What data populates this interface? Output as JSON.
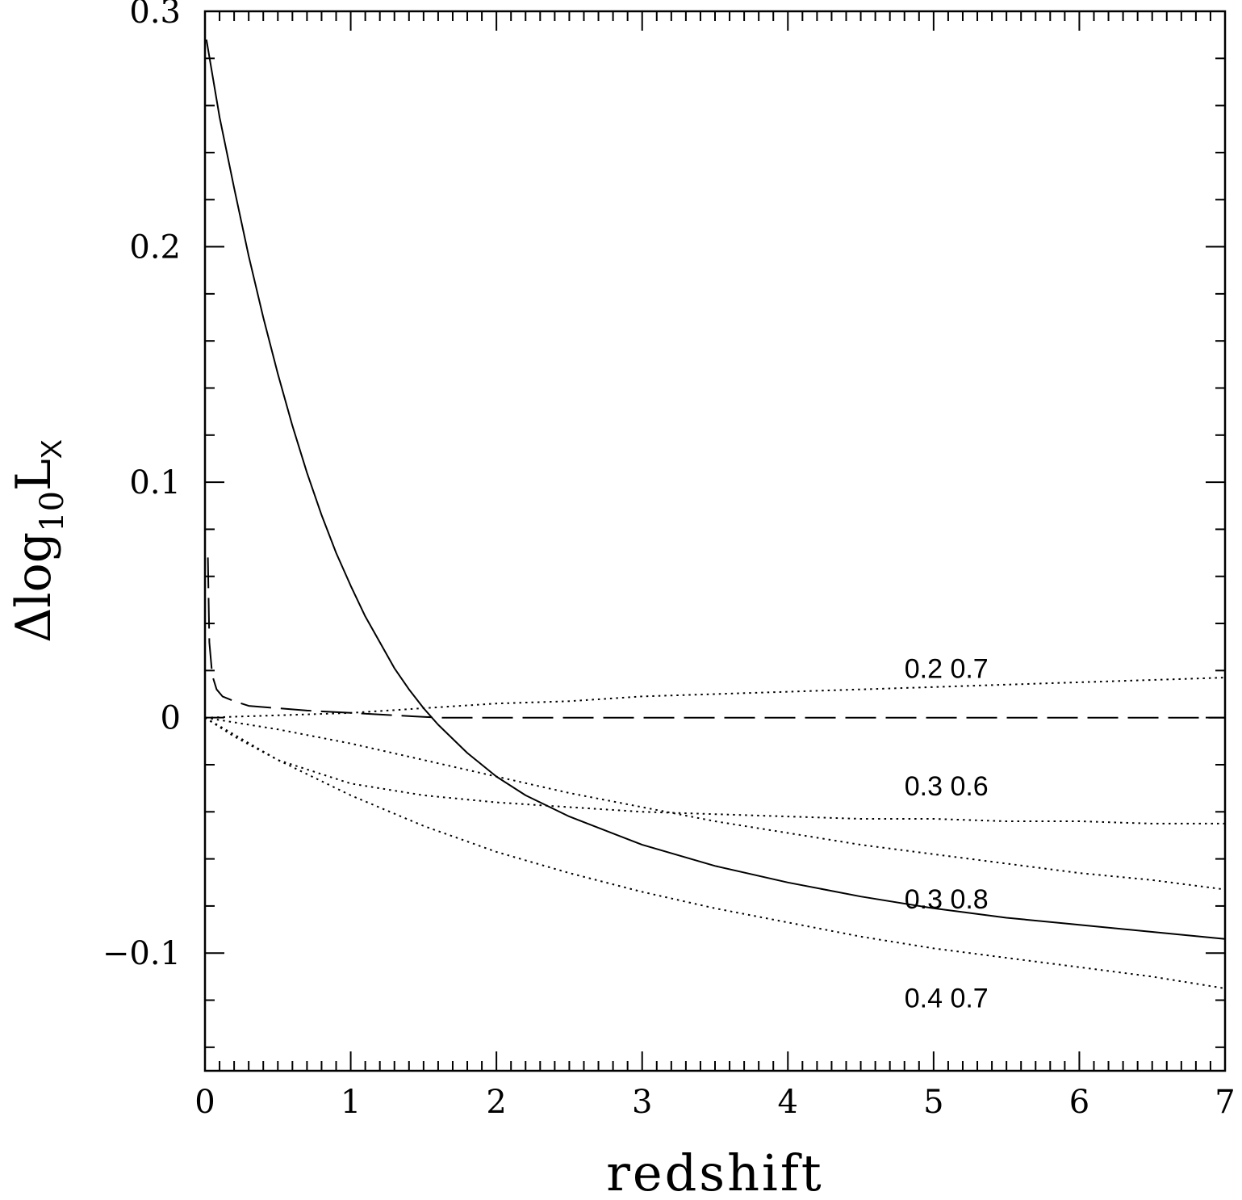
{
  "chart_data": {
    "type": "line",
    "xlabel": "redshift",
    "ylabel": "Δlog10LX",
    "ylabel_parts": {
      "delta": "Δ",
      "log": "log",
      "sub": "10",
      "L": "L",
      "Lsub": "X"
    },
    "xlim": [
      0,
      7
    ],
    "ylim": [
      -0.15,
      0.3
    ],
    "xticks": [
      0,
      1,
      2,
      3,
      4,
      5,
      6,
      7
    ],
    "xtick_labels": [
      "0",
      "1",
      "2",
      "3",
      "4",
      "5",
      "6",
      "7"
    ],
    "yticks": [
      -0.1,
      0,
      0.1,
      0.2,
      0.3
    ],
    "ytick_labels": [
      "−0.1",
      "0",
      "0.1",
      "0.2",
      "0.3"
    ],
    "grid": false,
    "series": [
      {
        "style": "solid",
        "x": [
          0.01,
          0.1,
          0.2,
          0.3,
          0.4,
          0.5,
          0.6,
          0.7,
          0.8,
          0.9,
          1.0,
          1.1,
          1.2,
          1.3,
          1.4,
          1.5,
          1.6,
          1.8,
          2.0,
          2.2,
          2.5,
          3.0,
          3.5,
          4.0,
          4.5,
          5.0,
          5.5,
          6.0,
          6.5,
          7.0
        ],
        "y": [
          0.288,
          0.255,
          0.225,
          0.196,
          0.17,
          0.146,
          0.124,
          0.104,
          0.086,
          0.07,
          0.056,
          0.043,
          0.032,
          0.021,
          0.012,
          0.004,
          -0.003,
          -0.015,
          -0.025,
          -0.033,
          -0.042,
          -0.054,
          -0.063,
          -0.07,
          -0.076,
          -0.081,
          -0.085,
          -0.088,
          -0.091,
          -0.094
        ]
      },
      {
        "style": "dashed",
        "x": [
          0.02,
          0.03,
          0.05,
          0.08,
          0.12,
          0.2,
          0.3,
          0.5,
          0.7,
          1.0,
          1.3,
          1.6,
          2.0,
          3.0,
          4.0,
          5.0,
          6.0,
          7.0
        ],
        "y": [
          0.068,
          0.032,
          0.018,
          0.012,
          0.009,
          0.007,
          0.005,
          0.004,
          0.003,
          0.002,
          0.001,
          0.0,
          0.0,
          0.0,
          0.0,
          0.0,
          0.0,
          0.0
        ]
      },
      {
        "style": "dotted",
        "label": "0.2 0.7",
        "x": [
          0,
          0.5,
          1.0,
          1.5,
          2.0,
          2.5,
          3.0,
          3.5,
          4.0,
          4.5,
          5.0,
          5.5,
          6.0,
          6.5,
          7.0
        ],
        "y": [
          0,
          0.001,
          0.002,
          0.004,
          0.006,
          0.007,
          0.009,
          0.01,
          0.011,
          0.012,
          0.013,
          0.014,
          0.015,
          0.016,
          0.017
        ]
      },
      {
        "style": "dotted",
        "label": "0.3 0.6",
        "x": [
          0,
          0.2,
          0.5,
          1.0,
          1.5,
          2.0,
          2.5,
          3.0,
          3.5,
          4.0,
          4.5,
          5.0,
          5.5,
          6.0,
          6.5,
          7.0
        ],
        "y": [
          0,
          -0.008,
          -0.018,
          -0.028,
          -0.033,
          -0.036,
          -0.038,
          -0.04,
          -0.041,
          -0.042,
          -0.043,
          -0.043,
          -0.044,
          -0.044,
          -0.045,
          -0.045
        ]
      },
      {
        "style": "dotted",
        "label": "0.3 0.8",
        "x": [
          0,
          0.5,
          1.0,
          1.5,
          2.0,
          2.5,
          3.0,
          3.5,
          4.0,
          4.5,
          5.0,
          5.5,
          6.0,
          6.5,
          7.0
        ],
        "y": [
          0,
          -0.005,
          -0.011,
          -0.018,
          -0.025,
          -0.032,
          -0.038,
          -0.044,
          -0.049,
          -0.054,
          -0.058,
          -0.062,
          -0.066,
          -0.069,
          -0.073
        ]
      },
      {
        "style": "dotted",
        "label": "0.4 0.7",
        "x": [
          0,
          0.5,
          1.0,
          1.5,
          2.0,
          2.5,
          3.0,
          3.5,
          4.0,
          4.5,
          5.0,
          5.5,
          6.0,
          6.5,
          7.0
        ],
        "y": [
          0,
          -0.018,
          -0.033,
          -0.046,
          -0.057,
          -0.066,
          -0.074,
          -0.081,
          -0.087,
          -0.093,
          -0.098,
          -0.102,
          -0.106,
          -0.11,
          -0.115
        ]
      }
    ],
    "annotations": [
      {
        "text": "0.2 0.7",
        "x": 4.8,
        "y": 0.021
      },
      {
        "text": "0.3 0.6",
        "x": 4.8,
        "y": -0.029
      },
      {
        "text": "0.3 0.8",
        "x": 4.8,
        "y": -0.077
      },
      {
        "text": "0.4 0.7",
        "x": 4.8,
        "y": -0.119
      }
    ]
  }
}
